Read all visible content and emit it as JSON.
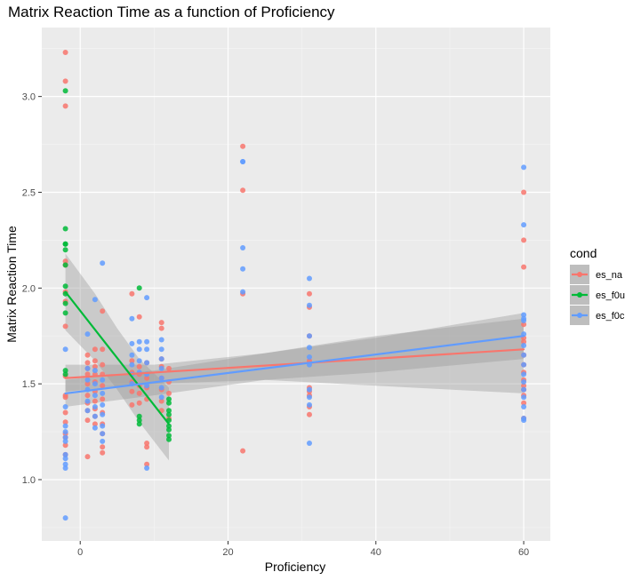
{
  "chart_data": {
    "type": "scatter",
    "title": "Matrix Reaction Time as a function of Proficiency",
    "xlabel": "Proficiency",
    "ylabel": "Matrix Reaction Time",
    "xlim": [
      -5.2,
      63.6
    ],
    "ylim": [
      0.68,
      3.36
    ],
    "xticks": [
      0,
      20,
      40,
      60
    ],
    "yticks": [
      1.0,
      1.5,
      2.0,
      2.5,
      3.0
    ],
    "grid": true,
    "legend": {
      "title": "cond",
      "position": "right"
    },
    "series": [
      {
        "name": "es_na",
        "color": "#F8766D",
        "points": [
          [
            -2,
            3.23
          ],
          [
            -2,
            3.08
          ],
          [
            -2,
            2.95
          ],
          [
            -2,
            2.14
          ],
          [
            -2,
            2.12
          ],
          [
            -2,
            1.98
          ],
          [
            -2,
            1.93
          ],
          [
            -2,
            1.8
          ],
          [
            -2,
            1.54
          ],
          [
            -2,
            1.44
          ],
          [
            -2,
            1.43
          ],
          [
            -2,
            1.35
          ],
          [
            -2,
            1.3
          ],
          [
            -2,
            1.24
          ],
          [
            -2,
            1.22
          ],
          [
            -2,
            1.18
          ],
          [
            -2,
            1.13
          ],
          [
            1,
            1.65
          ],
          [
            1,
            1.61
          ],
          [
            1,
            1.58
          ],
          [
            1,
            1.55
          ],
          [
            1,
            1.5
          ],
          [
            1,
            1.44
          ],
          [
            1,
            1.4
          ],
          [
            1,
            1.36
          ],
          [
            1,
            1.31
          ],
          [
            1,
            1.12
          ],
          [
            2,
            1.68
          ],
          [
            2,
            1.62
          ],
          [
            2,
            1.59
          ],
          [
            2,
            1.55
          ],
          [
            2,
            1.51
          ],
          [
            2,
            1.46
          ],
          [
            2,
            1.41
          ],
          [
            2,
            1.37
          ],
          [
            2,
            1.33
          ],
          [
            2,
            1.29
          ],
          [
            3,
            1.88
          ],
          [
            3,
            1.68
          ],
          [
            3,
            1.6
          ],
          [
            3,
            1.55
          ],
          [
            3,
            1.49
          ],
          [
            3,
            1.42
          ],
          [
            3,
            1.35
          ],
          [
            3,
            1.29
          ],
          [
            3,
            1.24
          ],
          [
            3,
            1.17
          ],
          [
            3,
            1.14
          ],
          [
            7,
            1.97
          ],
          [
            7,
            1.62
          ],
          [
            7,
            1.56
          ],
          [
            7,
            1.51
          ],
          [
            7,
            1.46
          ],
          [
            7,
            1.39
          ],
          [
            8,
            1.85
          ],
          [
            8,
            1.59
          ],
          [
            8,
            1.55
          ],
          [
            8,
            1.49
          ],
          [
            8,
            1.45
          ],
          [
            8,
            1.4
          ],
          [
            9,
            1.61
          ],
          [
            9,
            1.53
          ],
          [
            9,
            1.48
          ],
          [
            9,
            1.42
          ],
          [
            9,
            1.19
          ],
          [
            9,
            1.17
          ],
          [
            9,
            1.08
          ],
          [
            11,
            1.82
          ],
          [
            11,
            1.79
          ],
          [
            11,
            1.63
          ],
          [
            11,
            1.59
          ],
          [
            11,
            1.53
          ],
          [
            11,
            1.47
          ],
          [
            11,
            1.41
          ],
          [
            11,
            1.36
          ],
          [
            12,
            1.58
          ],
          [
            12,
            1.51
          ],
          [
            12,
            1.45
          ],
          [
            12,
            1.32
          ],
          [
            22,
            2.74
          ],
          [
            22,
            2.51
          ],
          [
            22,
            1.97
          ],
          [
            22,
            1.15
          ],
          [
            31,
            1.97
          ],
          [
            31,
            1.9
          ],
          [
            31,
            1.75
          ],
          [
            31,
            1.62
          ],
          [
            31,
            1.48
          ],
          [
            31,
            1.46
          ],
          [
            31,
            1.44
          ],
          [
            31,
            1.38
          ],
          [
            31,
            1.34
          ],
          [
            60,
            2.5
          ],
          [
            60,
            2.25
          ],
          [
            60,
            2.11
          ],
          [
            60,
            1.81
          ],
          [
            60,
            1.74
          ],
          [
            60,
            1.72
          ],
          [
            60,
            1.65
          ],
          [
            60,
            1.6
          ],
          [
            60,
            1.56
          ],
          [
            60,
            1.52
          ],
          [
            60,
            1.49
          ],
          [
            60,
            1.47
          ],
          [
            60,
            1.44
          ],
          [
            60,
            1.4
          ],
          [
            60,
            1.32
          ]
        ],
        "fit": {
          "x": [
            -2,
            60
          ],
          "y": [
            1.53,
            1.68
          ]
        },
        "band": {
          "x": [
            -2,
            10,
            25,
            40,
            60
          ],
          "lower": [
            1.46,
            1.5,
            1.52,
            1.49,
            1.45
          ],
          "upper": [
            1.6,
            1.6,
            1.66,
            1.75,
            1.84
          ]
        }
      },
      {
        "name": "es_f0u",
        "color": "#00BA38",
        "points": [
          [
            -2,
            3.03
          ],
          [
            -2,
            2.31
          ],
          [
            -2,
            2.23
          ],
          [
            -2,
            2.23
          ],
          [
            -2,
            2.2
          ],
          [
            -2,
            2.12
          ],
          [
            -2,
            2.01
          ],
          [
            -2,
            1.97
          ],
          [
            -2,
            1.92
          ],
          [
            -2,
            1.87
          ],
          [
            -2,
            1.57
          ],
          [
            -2,
            1.55
          ],
          [
            8,
            2.0
          ],
          [
            8,
            1.33
          ],
          [
            8,
            1.31
          ],
          [
            8,
            1.29
          ],
          [
            12,
            1.42
          ],
          [
            12,
            1.4
          ],
          [
            12,
            1.36
          ],
          [
            12,
            1.34
          ],
          [
            12,
            1.31
          ],
          [
            12,
            1.28
          ],
          [
            12,
            1.26
          ],
          [
            12,
            1.23
          ],
          [
            12,
            1.21
          ]
        ],
        "fit": {
          "x": [
            -2,
            12
          ],
          "y": [
            1.98,
            1.29
          ]
        },
        "band": {
          "x": [
            -2,
            2,
            5,
            8,
            12
          ],
          "lower": [
            1.78,
            1.62,
            1.47,
            1.3,
            1.1
          ],
          "upper": [
            2.18,
            1.97,
            1.79,
            1.63,
            1.48
          ]
        }
      },
      {
        "name": "es_f0c",
        "color": "#619CFF",
        "points": [
          [
            -2,
            1.68
          ],
          [
            -2,
            1.38
          ],
          [
            -2,
            1.28
          ],
          [
            -2,
            1.25
          ],
          [
            -2,
            1.22
          ],
          [
            -2,
            1.2
          ],
          [
            -2,
            1.13
          ],
          [
            -2,
            1.11
          ],
          [
            -2,
            1.08
          ],
          [
            -2,
            1.06
          ],
          [
            -2,
            0.8
          ],
          [
            1,
            1.76
          ],
          [
            1,
            1.58
          ],
          [
            1,
            1.52
          ],
          [
            1,
            1.47
          ],
          [
            1,
            1.41
          ],
          [
            1,
            1.36
          ],
          [
            2,
            1.94
          ],
          [
            2,
            1.57
          ],
          [
            2,
            1.5
          ],
          [
            2,
            1.44
          ],
          [
            2,
            1.38
          ],
          [
            2,
            1.33
          ],
          [
            2,
            1.27
          ],
          [
            3,
            2.13
          ],
          [
            3,
            1.52
          ],
          [
            3,
            1.45
          ],
          [
            3,
            1.39
          ],
          [
            3,
            1.34
          ],
          [
            3,
            1.28
          ],
          [
            3,
            1.24
          ],
          [
            3,
            1.2
          ],
          [
            7,
            1.84
          ],
          [
            7,
            1.71
          ],
          [
            7,
            1.65
          ],
          [
            7,
            1.6
          ],
          [
            7,
            1.55
          ],
          [
            7,
            1.5
          ],
          [
            8,
            1.72
          ],
          [
            8,
            1.68
          ],
          [
            8,
            1.62
          ],
          [
            8,
            1.56
          ],
          [
            9,
            1.95
          ],
          [
            9,
            1.72
          ],
          [
            9,
            1.68
          ],
          [
            9,
            1.61
          ],
          [
            9,
            1.55
          ],
          [
            9,
            1.49
          ],
          [
            9,
            1.06
          ],
          [
            11,
            1.73
          ],
          [
            11,
            1.68
          ],
          [
            11,
            1.63
          ],
          [
            11,
            1.58
          ],
          [
            11,
            1.53
          ],
          [
            11,
            1.48
          ],
          [
            11,
            1.43
          ],
          [
            22,
            2.66
          ],
          [
            22,
            2.66
          ],
          [
            22,
            2.21
          ],
          [
            22,
            2.1
          ],
          [
            22,
            1.98
          ],
          [
            31,
            2.05
          ],
          [
            31,
            1.91
          ],
          [
            31,
            1.75
          ],
          [
            31,
            1.69
          ],
          [
            31,
            1.64
          ],
          [
            31,
            1.6
          ],
          [
            31,
            1.47
          ],
          [
            31,
            1.43
          ],
          [
            31,
            1.39
          ],
          [
            31,
            1.19
          ],
          [
            60,
            2.63
          ],
          [
            60,
            2.33
          ],
          [
            60,
            1.86
          ],
          [
            60,
            1.84
          ],
          [
            60,
            1.83
          ],
          [
            60,
            1.76
          ],
          [
            60,
            1.7
          ],
          [
            60,
            1.65
          ],
          [
            60,
            1.6
          ],
          [
            60,
            1.55
          ],
          [
            60,
            1.51
          ],
          [
            60,
            1.47
          ],
          [
            60,
            1.43
          ],
          [
            60,
            1.38
          ],
          [
            60,
            1.32
          ],
          [
            60,
            1.31
          ]
        ],
        "fit": {
          "x": [
            -2,
            60
          ],
          "y": [
            1.45,
            1.75
          ]
        },
        "band": {
          "x": [
            -2,
            10,
            25,
            40,
            60
          ],
          "lower": [
            1.38,
            1.44,
            1.52,
            1.56,
            1.63
          ],
          "upper": [
            1.52,
            1.57,
            1.66,
            1.74,
            1.87
          ]
        }
      }
    ]
  }
}
